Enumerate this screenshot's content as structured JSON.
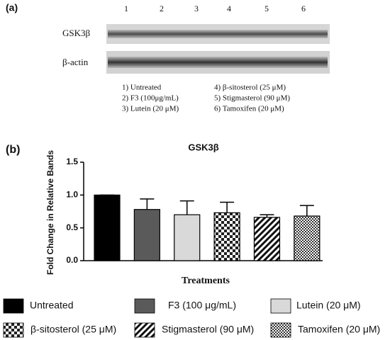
{
  "panel_a": {
    "label": "(a)",
    "lanes": [
      "1",
      "2",
      "3",
      "4",
      "5",
      "6"
    ],
    "rows": [
      "GSK3β",
      "β-actin"
    ],
    "key": [
      "1) Untreated",
      "2) F3 (100μg/mL)",
      "3) Lutein (20 μM)",
      "4) β-sitosterol (25 μM)",
      "5) Stigmasterol (90 μM)",
      "6) Tamoxifen (20 μM)"
    ]
  },
  "chart_data": {
    "type": "bar",
    "label": "(b)",
    "title": "GSK3β",
    "y_label": "Fold Change in Relative Bands",
    "x_label": "Treatments",
    "categories": [
      "Untreated",
      "F3 (100 μg/mL)",
      "Lutein (20 μM)",
      "β-sitosterol (25 μM)",
      "Stigmasterol (90 μM)",
      "Tamoxifen (20 μM)"
    ],
    "values": [
      1.0,
      0.78,
      0.7,
      0.73,
      0.66,
      0.68
    ],
    "errors": [
      0,
      0.16,
      0.21,
      0.16,
      0.04,
      0.16
    ],
    "fills": [
      "#000000",
      "#5a5a5a",
      "#d9d9d9",
      "checker",
      "diagonal",
      "fine-checker"
    ],
    "ylim": [
      0,
      1.5
    ],
    "yticks": [
      {
        "value": 0,
        "label": "0.0"
      },
      {
        "value": 0.5,
        "label": "0.5"
      },
      {
        "value": 1,
        "label": "1.0"
      },
      {
        "value": 1.5,
        "label": "1.5"
      }
    ]
  }
}
